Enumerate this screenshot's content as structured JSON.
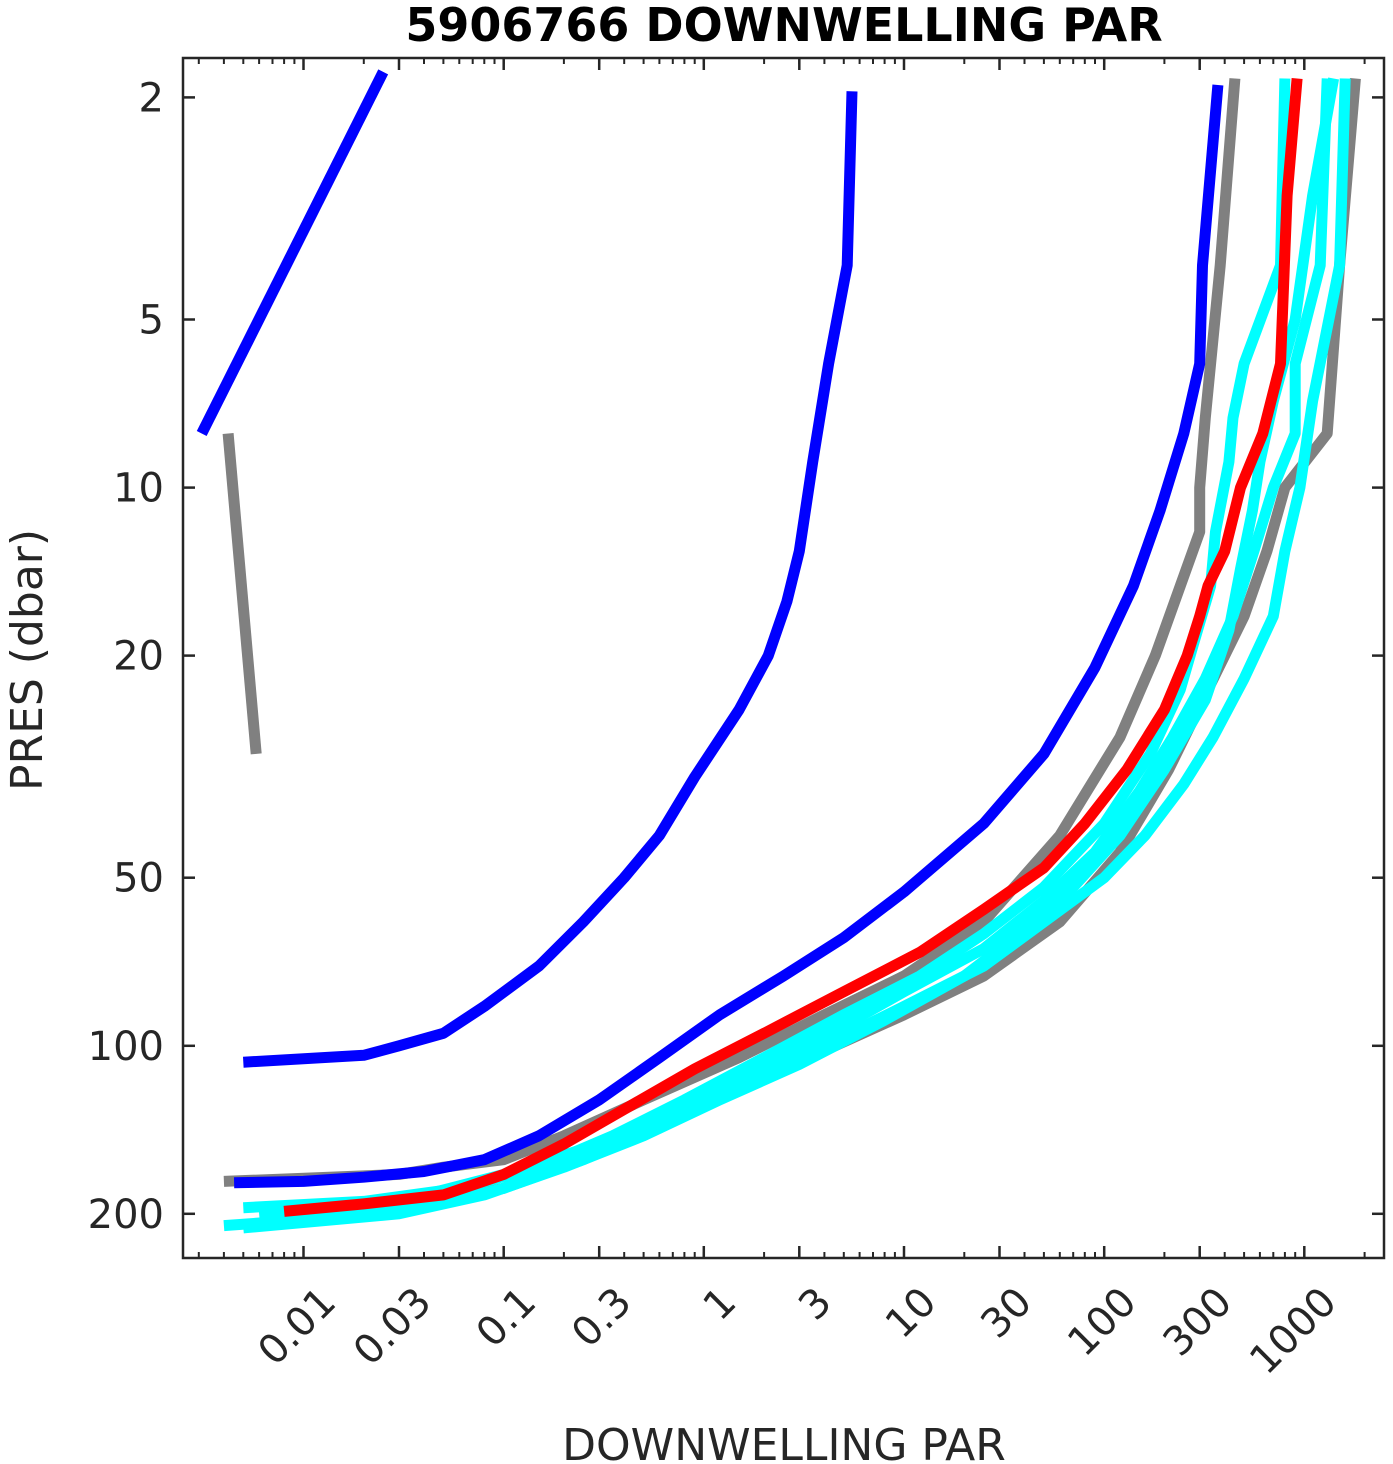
{
  "chart_data": {
    "type": "line",
    "title": "5906766  DOWNWELLING PAR",
    "xlabel": "DOWNWELLING PAR",
    "ylabel": "PRES (dbar)",
    "x_scale": "log",
    "y_scale": "log",
    "y_reversed": true,
    "xlim": [
      0.0025,
      2500
    ],
    "ylim": [
      1.7,
      240
    ],
    "x_ticks": [
      0.01,
      0.03,
      0.1,
      0.3,
      1,
      3,
      10,
      30,
      100,
      300,
      1000
    ],
    "x_tick_labels": [
      "0.01",
      "0.03",
      "0.1",
      "0.3",
      "1",
      "3",
      "10",
      "30",
      "100",
      "300",
      "1000"
    ],
    "y_ticks": [
      2,
      5,
      10,
      20,
      50,
      100,
      200
    ],
    "y_tick_labels": [
      "2",
      "5",
      "10",
      "20",
      "50",
      "100",
      "200"
    ],
    "grid": false,
    "colors": {
      "blue": "#0000ff",
      "gray": "#808080",
      "cyan": "#00ffff",
      "red": "#ff0000",
      "axis": "#262626"
    },
    "series": [
      {
        "color": "gray",
        "points": [
          [
            0.0042,
            8
          ],
          [
            0.0058,
            30
          ]
        ]
      },
      {
        "color": "gray",
        "points": [
          [
            450,
            1.85
          ],
          [
            380,
            4
          ],
          [
            320,
            7.5
          ],
          [
            300,
            10
          ],
          [
            300,
            12
          ],
          [
            240,
            15
          ],
          [
            180,
            20
          ],
          [
            120,
            28
          ],
          [
            60,
            42
          ],
          [
            25,
            60
          ],
          [
            10,
            75
          ],
          [
            4,
            88
          ],
          [
            1.5,
            105
          ],
          [
            0.5,
            125
          ],
          [
            0.2,
            145
          ],
          [
            0.1,
            160
          ],
          [
            0.05,
            165
          ],
          [
            0.03,
            170
          ],
          [
            0.004,
            175
          ]
        ]
      },
      {
        "color": "gray",
        "points": [
          [
            1800,
            1.85
          ],
          [
            1500,
            4
          ],
          [
            1300,
            8
          ],
          [
            800,
            10
          ],
          [
            650,
            13
          ],
          [
            500,
            17
          ],
          [
            330,
            23
          ],
          [
            210,
            32
          ],
          [
            120,
            45
          ],
          [
            60,
            60
          ],
          [
            25,
            75
          ],
          [
            10,
            88
          ],
          [
            4,
            102
          ],
          [
            1.2,
            120
          ],
          [
            0.5,
            140
          ],
          [
            0.2,
            160
          ],
          [
            0.1,
            180
          ],
          [
            0.05,
            190
          ]
        ]
      },
      {
        "color": "blue",
        "points": [
          [
            0.0031,
            8
          ],
          [
            0.025,
            1.8
          ]
        ]
      },
      {
        "color": "blue",
        "points": [
          [
            5.5,
            1.95
          ],
          [
            5.2,
            4
          ],
          [
            4.2,
            6
          ],
          [
            3.5,
            9
          ],
          [
            3,
            13
          ],
          [
            2.6,
            16
          ],
          [
            2.1,
            20
          ],
          [
            1.5,
            25
          ],
          [
            0.9,
            33
          ],
          [
            0.6,
            42
          ],
          [
            0.4,
            50
          ],
          [
            0.25,
            60
          ],
          [
            0.15,
            72
          ],
          [
            0.08,
            85
          ],
          [
            0.05,
            95
          ],
          [
            0.03,
            100
          ],
          [
            0.02,
            104
          ],
          [
            0.005,
            107
          ]
        ]
      },
      {
        "color": "blue",
        "points": [
          [
            370,
            1.9
          ],
          [
            310,
            4
          ],
          [
            300,
            6
          ],
          [
            250,
            8
          ],
          [
            190,
            11
          ],
          [
            140,
            15
          ],
          [
            90,
            21
          ],
          [
            50,
            30
          ],
          [
            25,
            40
          ],
          [
            10,
            53
          ],
          [
            5,
            64
          ],
          [
            2.5,
            75
          ],
          [
            1.2,
            88
          ],
          [
            0.6,
            105
          ],
          [
            0.3,
            125
          ],
          [
            0.15,
            145
          ],
          [
            0.08,
            160
          ],
          [
            0.04,
            168
          ],
          [
            0.02,
            172
          ],
          [
            0.01,
            175
          ],
          [
            0.0045,
            176
          ]
        ]
      },
      {
        "color": "cyan",
        "points": [
          [
            800,
            1.85
          ],
          [
            760,
            4
          ],
          [
            500,
            6
          ],
          [
            440,
            7.5
          ],
          [
            420,
            9
          ],
          [
            360,
            12
          ],
          [
            340,
            15
          ],
          [
            280,
            19
          ],
          [
            240,
            23
          ],
          [
            170,
            30
          ],
          [
            100,
            40
          ],
          [
            50,
            52
          ],
          [
            25,
            63
          ],
          [
            12,
            75
          ],
          [
            5,
            88
          ],
          [
            2,
            105
          ],
          [
            0.8,
            125
          ],
          [
            0.35,
            145
          ],
          [
            0.15,
            165
          ],
          [
            0.06,
            180
          ],
          [
            0.02,
            190
          ],
          [
            0.005,
            195
          ]
        ]
      },
      {
        "color": "cyan",
        "points": [
          [
            1300,
            1.85
          ],
          [
            1200,
            4
          ],
          [
            900,
            6
          ],
          [
            900,
            8
          ],
          [
            700,
            10
          ],
          [
            560,
            13
          ],
          [
            440,
            17
          ],
          [
            320,
            22
          ],
          [
            220,
            28
          ],
          [
            150,
            35
          ],
          [
            90,
            45
          ],
          [
            50,
            55
          ],
          [
            25,
            67
          ],
          [
            10,
            80
          ],
          [
            5,
            92
          ],
          [
            2,
            110
          ],
          [
            0.8,
            130
          ],
          [
            0.3,
            150
          ],
          [
            0.1,
            170
          ],
          [
            0.03,
            190
          ],
          [
            0.006,
            200
          ]
        ]
      },
      {
        "color": "cyan",
        "points": [
          [
            1600,
            1.85
          ],
          [
            1500,
            4
          ],
          [
            1100,
            7
          ],
          [
            950,
            10
          ],
          [
            800,
            13
          ],
          [
            700,
            17
          ],
          [
            500,
            22
          ],
          [
            350,
            28
          ],
          [
            250,
            34
          ],
          [
            160,
            42
          ],
          [
            100,
            50
          ],
          [
            50,
            60
          ],
          [
            25,
            72
          ],
          [
            10,
            85
          ],
          [
            4,
            100
          ],
          [
            1.5,
            120
          ],
          [
            0.6,
            140
          ],
          [
            0.25,
            160
          ],
          [
            0.1,
            180
          ],
          [
            0.04,
            195
          ],
          [
            0.01,
            205
          ],
          [
            0.004,
            210
          ]
        ]
      },
      {
        "color": "cyan",
        "points": [
          [
            1400,
            1.85
          ],
          [
            1100,
            3
          ],
          [
            900,
            5
          ],
          [
            700,
            7
          ],
          [
            600,
            9
          ],
          [
            550,
            11
          ],
          [
            480,
            14
          ],
          [
            420,
            18
          ],
          [
            320,
            24
          ],
          [
            200,
            32
          ],
          [
            120,
            42
          ],
          [
            70,
            52
          ],
          [
            40,
            62
          ],
          [
            20,
            75
          ],
          [
            8,
            90
          ],
          [
            3,
            108
          ],
          [
            1.2,
            125
          ],
          [
            0.5,
            145
          ],
          [
            0.2,
            165
          ],
          [
            0.08,
            185
          ],
          [
            0.03,
            200
          ],
          [
            0.005,
            212
          ]
        ]
      },
      {
        "color": "red",
        "points": [
          [
            920,
            1.85
          ],
          [
            820,
            3
          ],
          [
            760,
            6
          ],
          [
            620,
            8
          ],
          [
            480,
            10
          ],
          [
            400,
            13
          ],
          [
            330,
            15
          ],
          [
            300,
            17
          ],
          [
            260,
            20
          ],
          [
            200,
            25
          ],
          [
            130,
            32
          ],
          [
            80,
            40
          ],
          [
            50,
            48
          ],
          [
            25,
            57
          ],
          [
            12,
            68
          ],
          [
            5,
            80
          ],
          [
            2,
            95
          ],
          [
            0.9,
            110
          ],
          [
            0.4,
            130
          ],
          [
            0.2,
            150
          ],
          [
            0.1,
            170
          ],
          [
            0.05,
            185
          ],
          [
            0.02,
            192
          ],
          [
            0.008,
            198
          ]
        ]
      }
    ]
  }
}
